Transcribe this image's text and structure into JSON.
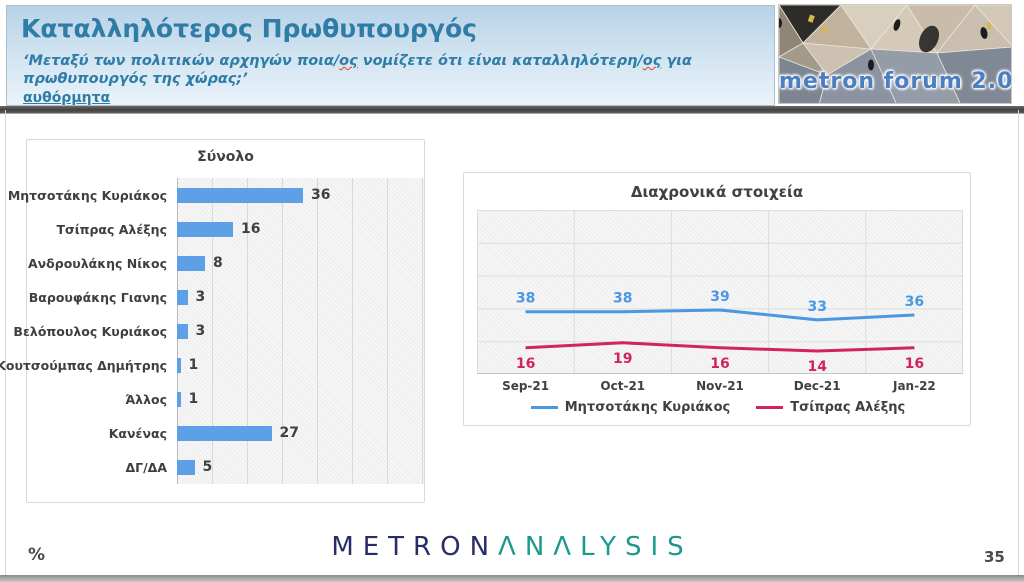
{
  "header": {
    "title": "Καταλληλότερος Πρωθυπουργός",
    "subtitle_segments": [
      {
        "text": "‘Μεταξύ των πολιτικών αρχηγών ποια/",
        "squiggle": false
      },
      {
        "text": "ος",
        "squiggle": true
      },
      {
        "text": " νομίζετε ότι είναι καταλληλότερη/",
        "squiggle": false
      },
      {
        "text": "ος",
        "squiggle": true
      },
      {
        "text": " για",
        "squiggle": false
      },
      {
        "break": true
      },
      {
        "text": "πρωθυπουργός της χώρας;’",
        "squiggle": false
      }
    ],
    "note": "αυθόρμητα",
    "logo_text": "metron forum 2.0",
    "accent_color": "#2f7ca6"
  },
  "chart_data": [
    {
      "type": "bar",
      "orientation": "horizontal",
      "title": "Σύνολο",
      "categories": [
        "Μητσοτάκης Κυριάκος",
        "Τσίπρας Αλέξης",
        "Ανδρουλάκης Νίκος",
        "Βαρουφάκης Γιανης",
        "Βελόπουλος Κυριάκος",
        "Κουτσούμπας Δημήτρης",
        "Άλλος",
        "Κανένας",
        "ΔΓ/ΔΑ"
      ],
      "values": [
        36,
        16,
        8,
        3,
        3,
        1,
        1,
        27,
        5
      ],
      "unit": "%",
      "xlim": [
        0,
        70
      ],
      "gridline_step": 10,
      "bar_color": "#5da0e6",
      "label_color": "#404040",
      "grid_on": true
    },
    {
      "type": "line",
      "title": "Διαχρονικά στοιχεία",
      "x": [
        "Sep-21",
        "Oct-21",
        "Nov-21",
        "Dec-21",
        "Jan-22"
      ],
      "series": [
        {
          "name": "Μητσοτάκης Κυριάκος",
          "values": [
            38,
            38,
            39,
            33,
            36
          ],
          "color": "#4a97e3",
          "label_position": "above"
        },
        {
          "name": "Τσίπρας Αλέξης",
          "values": [
            16,
            19,
            16,
            14,
            16
          ],
          "color": "#d22361",
          "label_position": "below"
        }
      ],
      "ylim": [
        0,
        100
      ],
      "y_gridline_step": 20,
      "grid_on": true,
      "legend_position": "bottom"
    }
  ],
  "footer": {
    "percent_label": "%",
    "brand_part1": "METRON",
    "brand_part2": "ΛNΛLYSIS",
    "brand_color1": "#282c67",
    "brand_color2": "#1a9a8c",
    "page_number": "35"
  }
}
